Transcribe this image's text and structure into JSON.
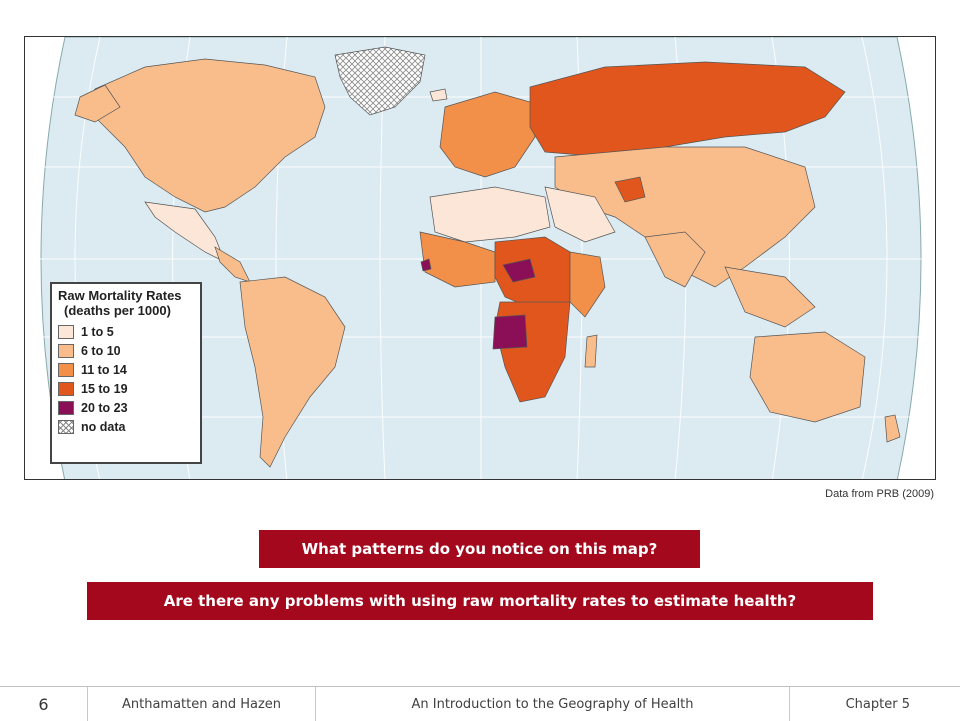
{
  "legend": {
    "title_line1": "Raw Mortality Rates",
    "title_line2": "(deaths per 1000)",
    "items": [
      {
        "label": "1 to 5",
        "color": "#fbe6d7"
      },
      {
        "label": "6 to 10",
        "color": "#f9bd8c"
      },
      {
        "label": "11 to 14",
        "color": "#f28f48"
      },
      {
        "label": "15 to 19",
        "color": "#e0561c"
      },
      {
        "label": "20 to 23",
        "color": "#8a0f57"
      },
      {
        "label": "no data",
        "color": "hatch"
      }
    ]
  },
  "source": "Data from PRB (2009)",
  "questions": {
    "q1": "What patterns do you notice on this map?",
    "q2": "Are there any problems with using raw mortality rates to estimate health?"
  },
  "footer": {
    "page": "6",
    "authors": "Anthamatten and Hazen",
    "title": "An Introduction to the Geography of Health",
    "chapter": "Chapter 5"
  },
  "colors": {
    "ocean": "#dcebf2",
    "accent": "#a3081c"
  }
}
